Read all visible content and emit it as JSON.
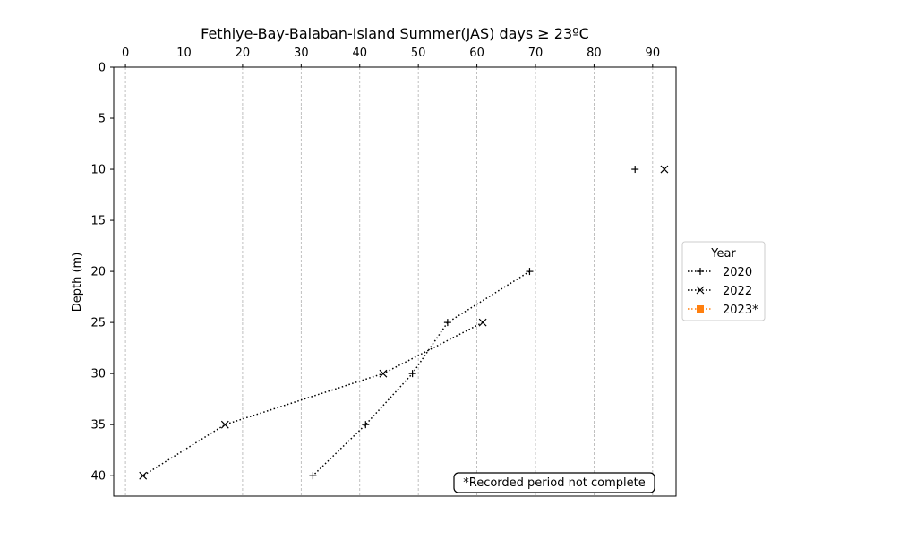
{
  "chart_data": {
    "type": "line",
    "title": "Fethiye-Bay-Balaban-Island Summer(JAS) days ≥ 23ºC",
    "xlabel": "",
    "ylabel": "Depth (m)",
    "xlim": [
      -2,
      94
    ],
    "ylim": [
      42,
      0
    ],
    "x_axis_position": "top",
    "y_inverted": true,
    "x_ticks": [
      0,
      10,
      20,
      30,
      40,
      50,
      60,
      70,
      80,
      90
    ],
    "y_ticks": [
      0,
      5,
      10,
      15,
      20,
      25,
      30,
      35,
      40
    ],
    "grid": "x-dashed",
    "legend": {
      "title": "Year",
      "placement": "outside-right"
    },
    "series": [
      {
        "name": "2020",
        "marker": "plus",
        "color": "#000000",
        "linestyle": "dotted",
        "points": [
          {
            "x": 87,
            "y": 10
          },
          {
            "x": 69,
            "y": 20
          },
          {
            "x": 55,
            "y": 25
          },
          {
            "x": 49,
            "y": 30
          },
          {
            "x": 41,
            "y": 35
          },
          {
            "x": 32,
            "y": 40
          }
        ],
        "connected_from_index": 1
      },
      {
        "name": "2022",
        "marker": "x",
        "color": "#000000",
        "linestyle": "dotted",
        "points": [
          {
            "x": 92,
            "y": 10
          },
          {
            "x": 61,
            "y": 25
          },
          {
            "x": 44,
            "y": 30
          },
          {
            "x": 17,
            "y": 35
          },
          {
            "x": 3,
            "y": 40
          }
        ],
        "connected_from_index": 1
      },
      {
        "name": "2023*",
        "marker": "square",
        "color": "#ff7f0e",
        "linestyle": "dotted",
        "points": []
      }
    ],
    "annotation": "*Recorded period not complete"
  }
}
